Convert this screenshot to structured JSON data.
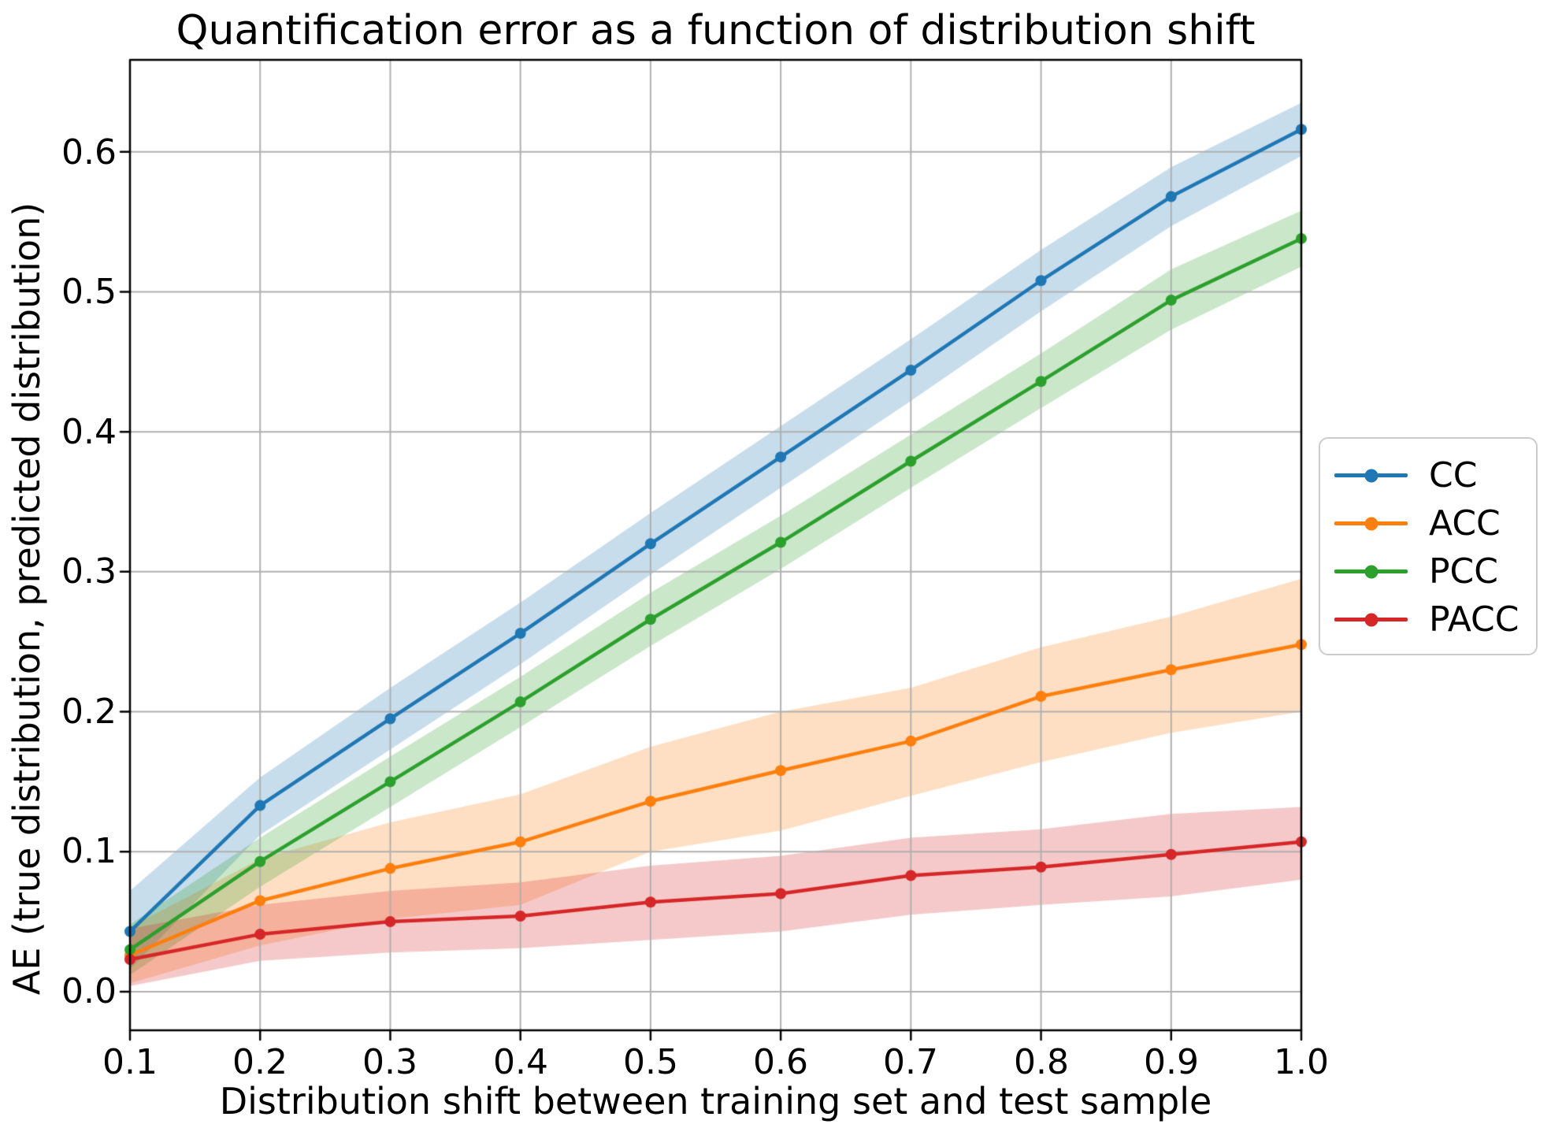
{
  "figure": {
    "background": "#ffffff",
    "text_color": "#000000"
  },
  "chart_data": {
    "type": "line",
    "title": "Quantification error as a function of distribution shift",
    "xlabel": "Distribution shift between training set and test sample",
    "ylabel": "AE (true distribution, predicted distribution)",
    "x": [
      0.1,
      0.2,
      0.3,
      0.4,
      0.5,
      0.6,
      0.7,
      0.8,
      0.9,
      1.0
    ],
    "x_ticks": [
      0.1,
      0.2,
      0.3,
      0.4,
      0.5,
      0.6,
      0.7,
      0.8,
      0.9,
      1.0
    ],
    "y_ticks": [
      0.0,
      0.1,
      0.2,
      0.3,
      0.4,
      0.5,
      0.6
    ],
    "x_tick_labels": [
      "0.1",
      "0.2",
      "0.3",
      "0.4",
      "0.5",
      "0.6",
      "0.7",
      "0.8",
      "0.9",
      "1.0"
    ],
    "y_tick_labels": [
      "0.0",
      "0.1",
      "0.2",
      "0.3",
      "0.4",
      "0.5",
      "0.6"
    ],
    "xlim": [
      0.1,
      1.0
    ],
    "ylim": [
      -0.0276,
      0.6657
    ],
    "grid": true,
    "grid_color": "#b0b0b0",
    "spine_color": "#000000",
    "band_alpha": 0.25,
    "legend_position": "right-outside",
    "series": [
      {
        "name": "CC",
        "color": "#1f77b4",
        "values": [
          0.043,
          0.133,
          0.195,
          0.256,
          0.32,
          0.382,
          0.444,
          0.508,
          0.568,
          0.616
        ],
        "band_lo": [
          0.016,
          0.112,
          0.173,
          0.234,
          0.298,
          0.36,
          0.422,
          0.486,
          0.547,
          0.597
        ],
        "band_hi": [
          0.072,
          0.153,
          0.217,
          0.278,
          0.342,
          0.404,
          0.466,
          0.53,
          0.589,
          0.635
        ]
      },
      {
        "name": "ACC",
        "color": "#ff7f0e",
        "values": [
          0.026,
          0.065,
          0.088,
          0.107,
          0.136,
          0.158,
          0.179,
          0.211,
          0.23,
          0.248
        ],
        "band_lo": [
          0.006,
          0.033,
          0.052,
          0.062,
          0.1,
          0.115,
          0.14,
          0.164,
          0.185,
          0.2
        ],
        "band_hi": [
          0.046,
          0.095,
          0.121,
          0.141,
          0.175,
          0.2,
          0.217,
          0.246,
          0.268,
          0.295
        ]
      },
      {
        "name": "PCC",
        "color": "#2ca02c",
        "values": [
          0.03,
          0.093,
          0.15,
          0.207,
          0.266,
          0.321,
          0.379,
          0.436,
          0.494,
          0.538
        ],
        "band_lo": [
          0.012,
          0.075,
          0.132,
          0.189,
          0.247,
          0.302,
          0.36,
          0.417,
          0.473,
          0.518
        ],
        "band_hi": [
          0.048,
          0.11,
          0.168,
          0.225,
          0.285,
          0.34,
          0.398,
          0.456,
          0.516,
          0.558
        ]
      },
      {
        "name": "PACC",
        "color": "#d62728",
        "values": [
          0.023,
          0.041,
          0.05,
          0.054,
          0.064,
          0.07,
          0.083,
          0.089,
          0.098,
          0.107
        ],
        "band_lo": [
          0.004,
          0.022,
          0.028,
          0.031,
          0.037,
          0.043,
          0.055,
          0.062,
          0.068,
          0.08
        ],
        "band_hi": [
          0.045,
          0.062,
          0.072,
          0.078,
          0.09,
          0.097,
          0.11,
          0.116,
          0.127,
          0.132
        ]
      }
    ]
  }
}
